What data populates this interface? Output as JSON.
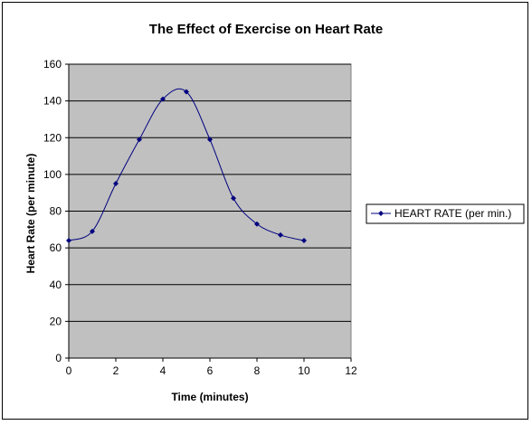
{
  "chart_data": {
    "type": "line",
    "title": "The Effect of Exercise on Heart Rate",
    "xlabel": "Time (minutes)",
    "ylabel": "Heart Rate (per minute)",
    "xlim": [
      0,
      12
    ],
    "ylim": [
      0,
      160
    ],
    "xticks": [
      0,
      2,
      4,
      6,
      8,
      10,
      12
    ],
    "yticks": [
      0,
      20,
      40,
      60,
      80,
      100,
      120,
      140,
      160
    ],
    "grid": "horizontal",
    "legend_position": "right",
    "plot_background": "#c0c0c0",
    "series": [
      {
        "name": "HEART RATE (per min.)",
        "color": "#000080",
        "x": [
          0,
          1,
          2,
          3,
          4,
          5,
          6,
          7,
          8,
          9,
          10
        ],
        "y": [
          64,
          69,
          95,
          119,
          141,
          145,
          119,
          87,
          73,
          67,
          64
        ]
      }
    ]
  }
}
